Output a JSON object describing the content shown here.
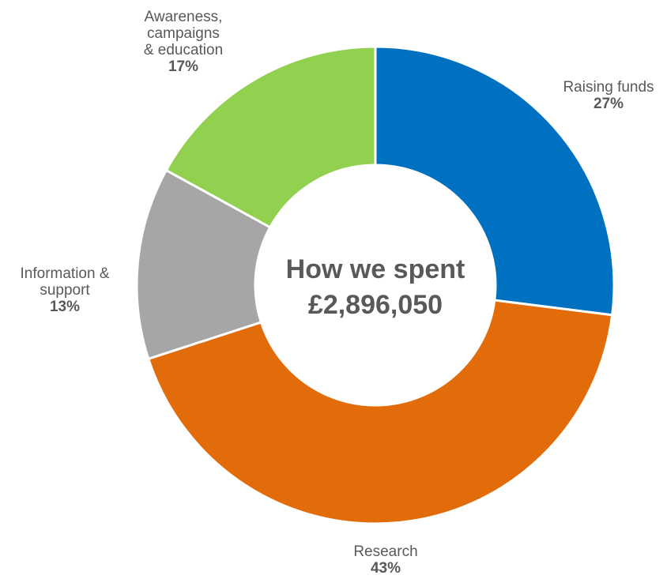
{
  "chart_data": {
    "type": "pie",
    "variant": "donut",
    "center_text": [
      "How we spent",
      "£2,896,050"
    ],
    "slices": [
      {
        "label": [
          "Raising funds"
        ],
        "value": 27,
        "value_label": "27%",
        "color": "#0070C0"
      },
      {
        "label": [
          "Research"
        ],
        "value": 43,
        "value_label": "43%",
        "color": "#E36C0A"
      },
      {
        "label": [
          "Information &",
          "support"
        ],
        "value": 13,
        "value_label": "13%",
        "color": "#A6A6A6"
      },
      {
        "label": [
          "Awareness,",
          "campaigns",
          "& education"
        ],
        "value": 17,
        "value_label": "17%",
        "color": "#92D050"
      }
    ],
    "start_angle_deg": 0,
    "direction": "clockwise",
    "legend": "none"
  }
}
